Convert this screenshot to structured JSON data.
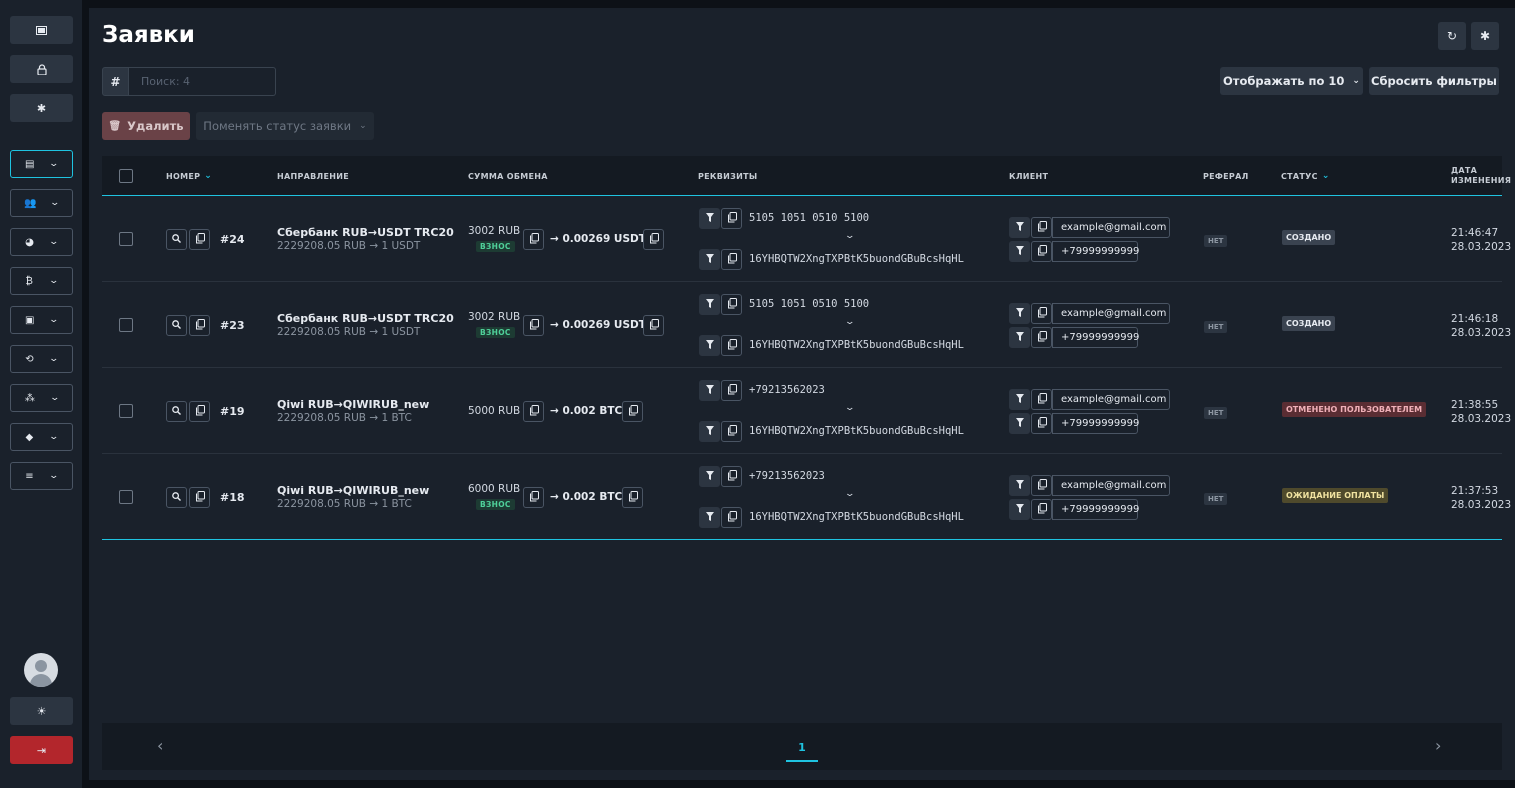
{
  "page": {
    "title": "Заявки",
    "search": {
      "hash": "#",
      "placeholder": "Поиск: 4"
    },
    "per_page_label": "Отображать по 10",
    "reset_filters_label": "Сбросить фильтры",
    "delete_label": "Удалить",
    "change_status_label": "Поменять статус заявки"
  },
  "sidebar": {
    "icons": [
      "window-icon",
      "lock-icon",
      "gear-icon",
      "clipboard-icon",
      "users-icon",
      "money-icon",
      "bitcoin-icon",
      "card-icon",
      "exchange-icon",
      "team-icon",
      "diamond-icon",
      "list-icon"
    ],
    "theme_icon": "sun-icon",
    "logout_icon": "logout-icon"
  },
  "table": {
    "headers": {
      "number": "НОМЕР",
      "direction": "НАПРАВЛЕНИЕ",
      "amount": "СУММА ОБМЕНА",
      "requisites": "РЕКВИЗИТЫ",
      "client": "КЛИЕНТ",
      "referral": "РЕФЕРАЛ",
      "status": "СТАТУС",
      "date_1": "ДАТА",
      "date_2": "ИЗМЕНЕНИЯ"
    },
    "rows": [
      {
        "number": "#24",
        "direction": "Сбербанк RUB→USDT TRC20",
        "rate": "2229208.05 RUB → 1 USDT",
        "amount_from": "3002 RUB",
        "deposit_badge": "ВЗНОС",
        "amount_to": "→ 0.00269 USDT",
        "req_from": "5105 1051 0510 5100",
        "req_to": "16YHBQTW2XngTXPBtK5buondGBuBcsHqHL",
        "email": "example@gmail.com",
        "phone": "+79999999999",
        "referral": "НЕТ",
        "status": "СОЗДАНО",
        "status_kind": "created",
        "time": "21:46:47",
        "date": "28.03.2023"
      },
      {
        "number": "#23",
        "direction": "Сбербанк RUB→USDT TRC20",
        "rate": "2229208.05 RUB → 1 USDT",
        "amount_from": "3002 RUB",
        "deposit_badge": "ВЗНОС",
        "amount_to": "→ 0.00269 USDT",
        "req_from": "5105 1051 0510 5100",
        "req_to": "16YHBQTW2XngTXPBtK5buondGBuBcsHqHL",
        "email": "example@gmail.com",
        "phone": "+79999999999",
        "referral": "НЕТ",
        "status": "СОЗДАНО",
        "status_kind": "created",
        "time": "21:46:18",
        "date": "28.03.2023"
      },
      {
        "number": "#19",
        "direction": "Qiwi RUB→QIWIRUB_new",
        "rate": "2229208.05 RUB → 1 BTC",
        "amount_from": "5000 RUB",
        "deposit_badge": "",
        "amount_to": "→ 0.002 BTC",
        "req_from": "+79213562023",
        "req_to": "16YHBQTW2XngTXPBtK5buondGBuBcsHqHL",
        "email": "example@gmail.com",
        "phone": "+79999999999",
        "referral": "НЕТ",
        "status": "ОТМЕНЕНО ПОЛЬЗОВАТЕЛЕМ",
        "status_kind": "cancel",
        "time": "21:38:55",
        "date": "28.03.2023"
      },
      {
        "number": "#18",
        "direction": "Qiwi RUB→QIWIRUB_new",
        "rate": "2229208.05 RUB → 1 BTC",
        "amount_from": "6000 RUB",
        "deposit_badge": "ВЗНОС",
        "amount_to": "→ 0.002 BTC",
        "req_from": "+79213562023",
        "req_to": "16YHBQTW2XngTXPBtK5buondGBuBcsHqHL",
        "email": "example@gmail.com",
        "phone": "+79999999999",
        "referral": "НЕТ",
        "status": "ОЖИДАНИЕ ОПЛАТЫ",
        "status_kind": "wait",
        "time": "21:37:53",
        "date": "28.03.2023"
      }
    ]
  },
  "pagination": {
    "current": "1",
    "prev": "‹",
    "next": "›"
  },
  "colors": {
    "accent": "#1fc3e0",
    "logout": "#b3262c",
    "panel": "#1a212b",
    "background": "#0d1117"
  }
}
